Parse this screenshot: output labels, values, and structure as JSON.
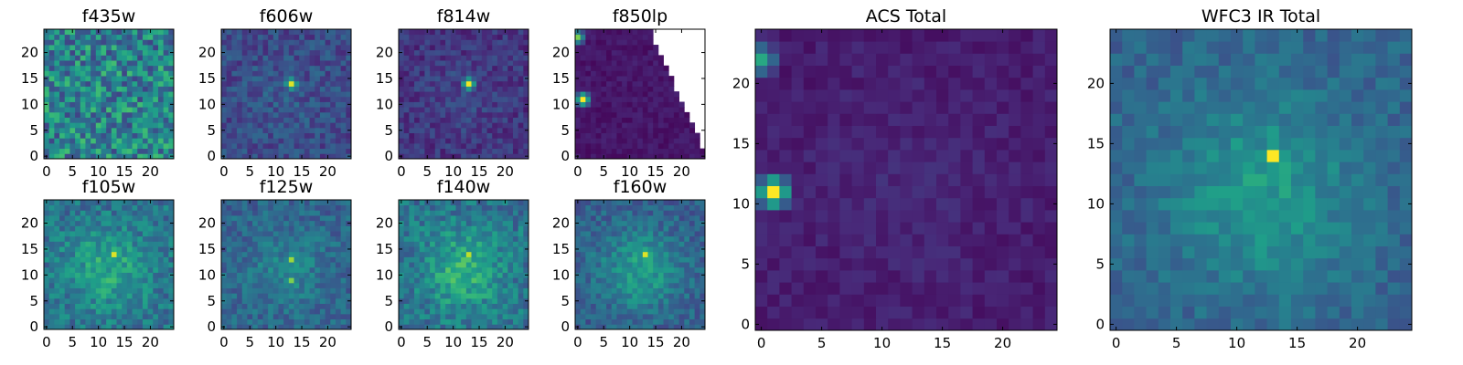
{
  "chart_data": [
    {
      "type": "heatmap",
      "title": "f435w",
      "xticks": [
        "0",
        "5",
        "10",
        "15",
        "20"
      ],
      "yticks": [
        "0",
        "5",
        "10",
        "15",
        "20"
      ],
      "xlim": [
        -0.5,
        24.5
      ],
      "ylim": [
        -0.5,
        24.5
      ],
      "colormap": "viridis",
      "grid": false,
      "missing_region": "none",
      "source_peaks": []
    },
    {
      "type": "heatmap",
      "title": "f606w",
      "xticks": [
        "0",
        "5",
        "10",
        "15",
        "20"
      ],
      "yticks": [
        "0",
        "5",
        "10",
        "15",
        "20"
      ],
      "xlim": [
        -0.5,
        24.5
      ],
      "ylim": [
        -0.5,
        24.5
      ],
      "colormap": "viridis",
      "grid": false,
      "missing_region": "none",
      "source_peaks": [
        {
          "x": 13,
          "y": 14,
          "v": 0.95
        }
      ]
    },
    {
      "type": "heatmap",
      "title": "f814w",
      "xticks": [
        "0",
        "5",
        "10",
        "15",
        "20"
      ],
      "yticks": [
        "0",
        "5",
        "10",
        "15",
        "20"
      ],
      "xlim": [
        -0.5,
        24.5
      ],
      "ylim": [
        -0.5,
        24.5
      ],
      "colormap": "viridis",
      "grid": false,
      "missing_region": "none",
      "source_peaks": [
        {
          "x": 13,
          "y": 14,
          "v": 0.98
        }
      ]
    },
    {
      "type": "heatmap",
      "title": "f850lp",
      "xticks": [
        "0",
        "5",
        "10",
        "15",
        "20"
      ],
      "yticks": [
        "0",
        "5",
        "10",
        "15",
        "20"
      ],
      "xlim": [
        -0.5,
        24.5
      ],
      "ylim": [
        -0.5,
        24.5
      ],
      "colormap": "viridis",
      "grid": false,
      "missing_region": "upper-right triangle (no data)",
      "source_peaks": [
        {
          "x": 1,
          "y": 11,
          "v": 1.0
        },
        {
          "x": 0,
          "y": 23,
          "v": 0.8
        }
      ]
    },
    {
      "type": "heatmap",
      "title": "f105w",
      "xticks": [
        "0",
        "5",
        "10",
        "15",
        "20"
      ],
      "yticks": [
        "0",
        "5",
        "10",
        "15",
        "20"
      ],
      "xlim": [
        -0.5,
        24.5
      ],
      "ylim": [
        -0.5,
        24.5
      ],
      "colormap": "viridis",
      "grid": false,
      "missing_region": "none",
      "source_peaks": [
        {
          "x": 13,
          "y": 14,
          "v": 0.95
        }
      ]
    },
    {
      "type": "heatmap",
      "title": "f125w",
      "xticks": [
        "0",
        "5",
        "10",
        "15",
        "20"
      ],
      "yticks": [
        "0",
        "5",
        "10",
        "15",
        "20"
      ],
      "xlim": [
        -0.5,
        24.5
      ],
      "ylim": [
        -0.5,
        24.5
      ],
      "colormap": "viridis",
      "grid": false,
      "missing_region": "none",
      "source_peaks": [
        {
          "x": 13,
          "y": 13,
          "v": 0.85
        },
        {
          "x": 13,
          "y": 9,
          "v": 0.8
        }
      ]
    },
    {
      "type": "heatmap",
      "title": "f140w",
      "xticks": [
        "0",
        "5",
        "10",
        "15",
        "20"
      ],
      "yticks": [
        "0",
        "5",
        "10",
        "15",
        "20"
      ],
      "xlim": [
        -0.5,
        24.5
      ],
      "ylim": [
        -0.5,
        24.5
      ],
      "colormap": "viridis",
      "grid": false,
      "missing_region": "none",
      "source_peaks": [
        {
          "x": 13,
          "y": 14,
          "v": 0.9
        }
      ]
    },
    {
      "type": "heatmap",
      "title": "f160w",
      "xticks": [
        "0",
        "5",
        "10",
        "15",
        "20"
      ],
      "yticks": [
        "0",
        "5",
        "10",
        "15",
        "20"
      ],
      "xlim": [
        -0.5,
        24.5
      ],
      "ylim": [
        -0.5,
        24.5
      ],
      "colormap": "viridis",
      "grid": false,
      "missing_region": "none",
      "source_peaks": [
        {
          "x": 13,
          "y": 14,
          "v": 0.95
        }
      ]
    },
    {
      "type": "heatmap",
      "title": "ACS Total",
      "xticks": [
        "0",
        "5",
        "10",
        "15",
        "20"
      ],
      "yticks": [
        "0",
        "5",
        "10",
        "15",
        "20"
      ],
      "xlim": [
        -0.5,
        24.5
      ],
      "ylim": [
        -0.5,
        24.5
      ],
      "colormap": "viridis",
      "grid": false,
      "missing_region": "none",
      "source_peaks": [
        {
          "x": 1,
          "y": 11,
          "v": 1.0
        },
        {
          "x": 0,
          "y": 22,
          "v": 0.6
        }
      ]
    },
    {
      "type": "heatmap",
      "title": "WFC3 IR Total",
      "xticks": [
        "0",
        "5",
        "10",
        "15",
        "20"
      ],
      "yticks": [
        "0",
        "5",
        "10",
        "15",
        "20"
      ],
      "xlim": [
        -0.5,
        24.5
      ],
      "ylim": [
        -0.5,
        24.5
      ],
      "colormap": "viridis",
      "grid": false,
      "missing_region": "none",
      "source_peaks": [
        {
          "x": 13,
          "y": 14,
          "v": 1.0
        }
      ]
    }
  ]
}
